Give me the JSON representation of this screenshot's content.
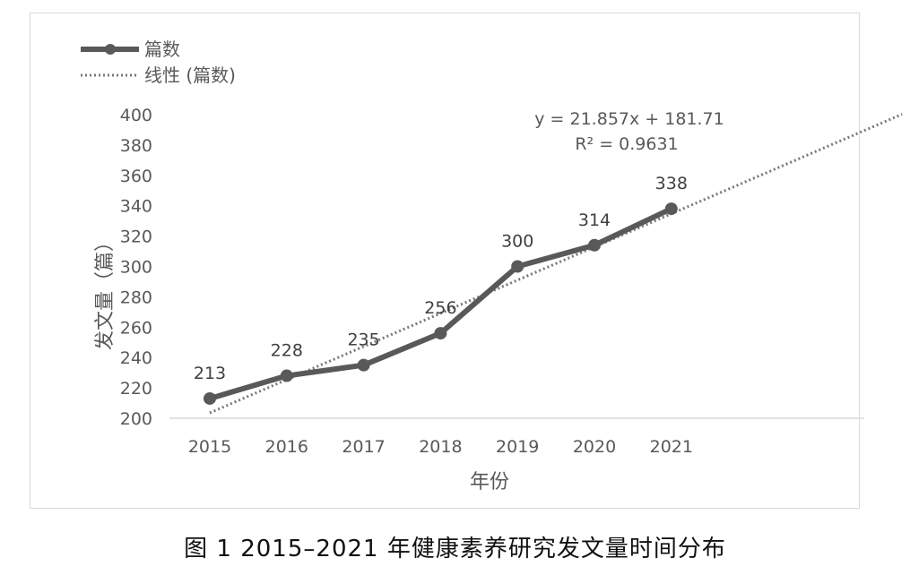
{
  "chart_data": {
    "type": "line",
    "categories": [
      "2015",
      "2016",
      "2017",
      "2018",
      "2019",
      "2020",
      "2021"
    ],
    "series": [
      {
        "name": "篇数",
        "values": [
          213,
          228,
          235,
          256,
          300,
          314,
          338
        ],
        "color": "#595959"
      }
    ],
    "data_labels": [
      "213",
      "228",
      "235",
      "256",
      "300",
      "314",
      "338"
    ],
    "trendline": {
      "name": "线性 (篇数)",
      "slope": 21.857,
      "intercept": 181.71,
      "equation": "y = 21.857x + 181.71",
      "r_squared": "R² = 0.9631",
      "extends_to_category_index": 9.0,
      "color": "#777777"
    },
    "xlabel": "年份",
    "ylabel": "发文量（篇）",
    "ylim": [
      200,
      400
    ],
    "yticks": [
      "200",
      "220",
      "240",
      "260",
      "280",
      "300",
      "320",
      "340",
      "360",
      "380",
      "400"
    ],
    "grid": false,
    "legend": "top-left"
  },
  "caption": "图 1   2015–2021 年健康素养研究发文量时间分布"
}
